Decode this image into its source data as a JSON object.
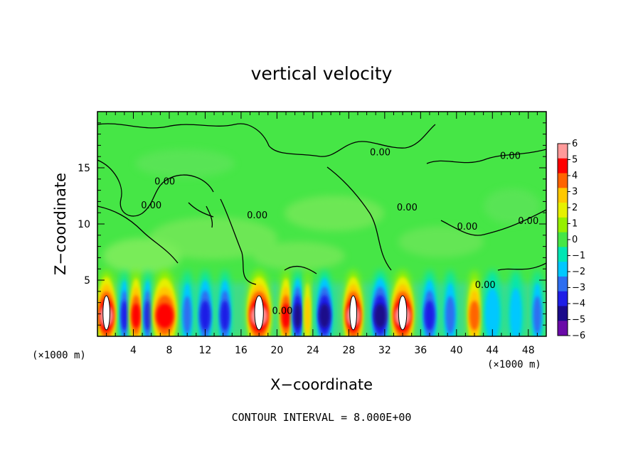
{
  "chart_data": {
    "type": "heatmap",
    "title": "vertical velocity",
    "xlabel": "X−coordinate",
    "ylabel": "Z−coordinate",
    "x_unit": "(×1000 m)",
    "y_unit": "(×1000 m)",
    "xlim": [
      0,
      50
    ],
    "ylim": [
      0,
      20
    ],
    "x_ticks": [
      4,
      8,
      12,
      16,
      20,
      24,
      28,
      32,
      36,
      40,
      44,
      48
    ],
    "x_tick_labels": [
      "4",
      "8",
      "12",
      "16",
      "20",
      "24",
      "28",
      "32",
      "36",
      "40",
      "44",
      "48"
    ],
    "y_ticks": [
      5,
      10,
      15
    ],
    "y_tick_labels": [
      "5",
      "10",
      "15"
    ],
    "colorbar": {
      "min": -6,
      "max": 6,
      "tick_labels": [
        "6",
        "5",
        "4",
        "3",
        "2",
        "1",
        "0",
        "−1",
        "−2",
        "−3",
        "−4",
        "−5",
        "−6"
      ],
      "colors": {
        "neg6": "#6a0aa8",
        "neg5": "#1a0a8a",
        "neg4": "#1e1ee6",
        "neg3": "#2e6ef0",
        "neg2": "#00c8ff",
        "neg1": "#00e6b4",
        "zero": "#46e646",
        "pos1": "#96f000",
        "pos2": "#e6f000",
        "pos3": "#ffc800",
        "pos4": "#ff6400",
        "pos5": "#ff0000",
        "pos6": "#ff9a9a"
      }
    },
    "contour_level_label": "0.00",
    "contour_interval_text": "CONTOUR INTERVAL = 8.000E+00",
    "cells": [
      {
        "x": 1.0,
        "w": 2.2,
        "v": 6
      },
      {
        "x": 3.0,
        "w": 1.0,
        "v": -4
      },
      {
        "x": 4.3,
        "w": 1.4,
        "v": 5
      },
      {
        "x": 5.6,
        "w": 1.0,
        "v": -4
      },
      {
        "x": 7.5,
        "w": 2.8,
        "v": 5
      },
      {
        "x": 10.0,
        "w": 1.2,
        "v": -3
      },
      {
        "x": 12.0,
        "w": 1.6,
        "v": -4
      },
      {
        "x": 14.2,
        "w": 1.4,
        "v": -4
      },
      {
        "x": 18.0,
        "w": 2.8,
        "v": 6
      },
      {
        "x": 21.0,
        "w": 1.4,
        "v": 5
      },
      {
        "x": 22.3,
        "w": 1.2,
        "v": -5
      },
      {
        "x": 23.4,
        "w": 0.8,
        "v": 3
      },
      {
        "x": 25.3,
        "w": 1.8,
        "v": -5
      },
      {
        "x": 28.5,
        "w": 2.2,
        "v": 6
      },
      {
        "x": 31.5,
        "w": 2.0,
        "v": -5
      },
      {
        "x": 34.0,
        "w": 2.6,
        "v": 6
      },
      {
        "x": 37.0,
        "w": 1.6,
        "v": -4
      },
      {
        "x": 39.3,
        "w": 1.4,
        "v": -3
      },
      {
        "x": 42.0,
        "w": 1.6,
        "v": 4
      },
      {
        "x": 44.0,
        "w": 2.0,
        "v": -2
      },
      {
        "x": 46.6,
        "w": 1.6,
        "v": -2
      },
      {
        "x": 49.0,
        "w": 1.2,
        "v": -3
      }
    ],
    "contour_labels": [
      {
        "x": 7.5,
        "z": 13.5,
        "text": "0.00"
      },
      {
        "x": 6.0,
        "z": 11.4,
        "text": "0.00"
      },
      {
        "x": 17.8,
        "z": 10.5,
        "text": "0.00"
      },
      {
        "x": 20.6,
        "z": 2.0,
        "text": "0.00"
      },
      {
        "x": 31.5,
        "z": 16.1,
        "text": "0.00"
      },
      {
        "x": 34.5,
        "z": 11.2,
        "text": "0.00"
      },
      {
        "x": 46.0,
        "z": 15.8,
        "text": "0.00"
      },
      {
        "x": 41.2,
        "z": 9.5,
        "text": "0.00"
      },
      {
        "x": 48.0,
        "z": 10.0,
        "text": "0.00"
      },
      {
        "x": 43.2,
        "z": 4.3,
        "text": "0.00"
      }
    ]
  }
}
